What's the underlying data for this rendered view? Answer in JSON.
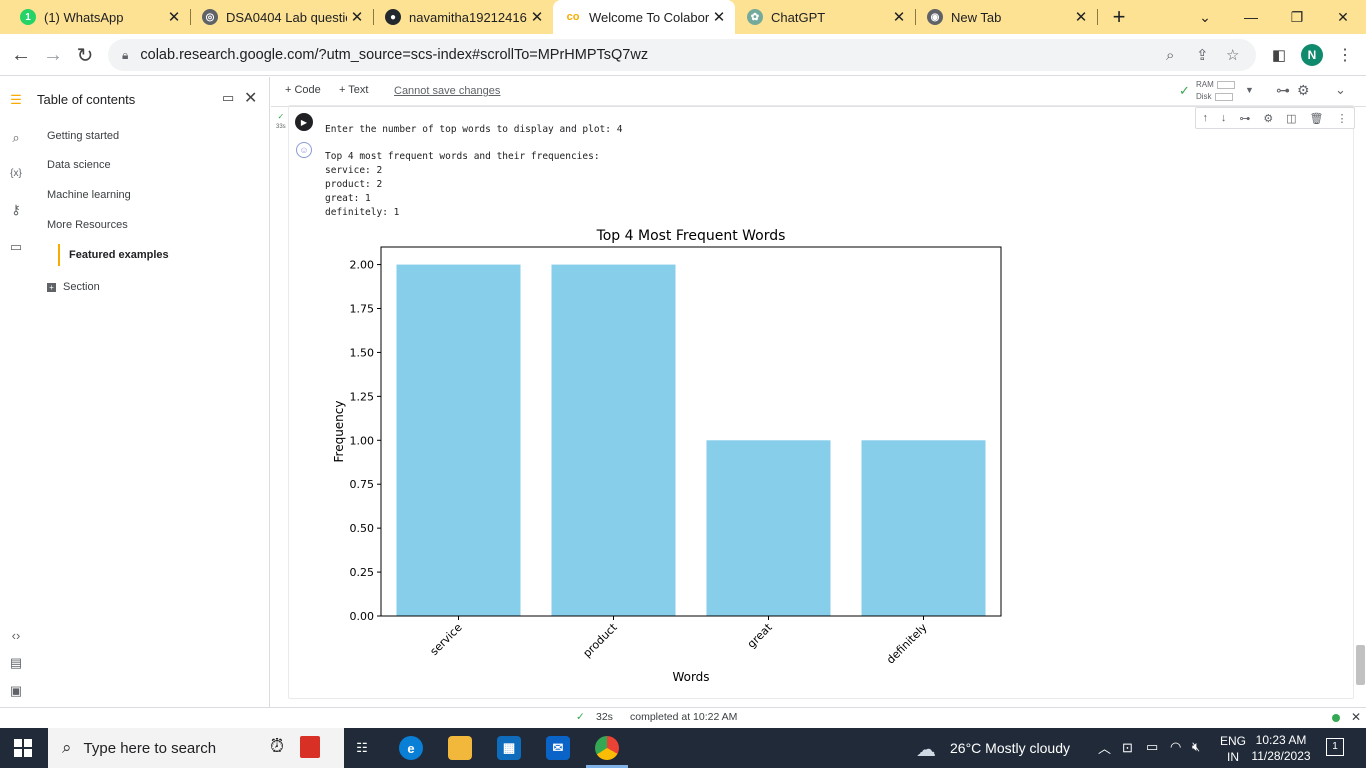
{
  "browser": {
    "tabs": [
      {
        "label": "(1) WhatsApp",
        "icon": "whatsapp-icon",
        "active": false
      },
      {
        "label": "DSA0404 Lab questio",
        "icon": "globe-icon",
        "active": false
      },
      {
        "label": "navamitha19212416:",
        "icon": "github-icon",
        "active": false
      },
      {
        "label": "Welcome To Colabor",
        "icon": "colab-icon",
        "active": true
      },
      {
        "label": "ChatGPT",
        "icon": "chatgpt-icon",
        "active": false
      },
      {
        "label": "New Tab",
        "icon": "chrome-icon",
        "active": false
      }
    ],
    "new_tab": "+",
    "url": "colab.research.google.com/?utm_source=scs-index#scrollTo=MPrHMPTsQ7wz",
    "profile_initial": "N"
  },
  "toc": {
    "title": "Table of contents",
    "items": [
      "Getting started",
      "Data science",
      "Machine learning",
      "More Resources"
    ],
    "selected": "Featured examples",
    "section": "Section"
  },
  "colab_toolbar": {
    "code": "+ Code",
    "text": "+ Text",
    "warning": "Cannot save changes",
    "ram": "RAM",
    "disk": "Disk"
  },
  "cell": {
    "exec_time": "33s",
    "output_lines": [
      "Enter the number of top words to display and plot: 4",
      "Top 4 most frequent words and their frequencies:",
      "service: 2",
      "product: 2",
      "great: 1",
      "definitely: 1"
    ]
  },
  "chart_data": {
    "type": "bar",
    "title": "Top 4 Most Frequent Words",
    "xlabel": "Words",
    "ylabel": "Frequency",
    "categories": [
      "service",
      "product",
      "great",
      "definitely"
    ],
    "values": [
      2,
      2,
      1,
      1
    ],
    "ylim": [
      0,
      2.1
    ],
    "yticks": [
      "0.00",
      "0.25",
      "0.50",
      "0.75",
      "1.00",
      "1.25",
      "1.50",
      "1.75",
      "2.00"
    ],
    "bar_color": "#87ceeb",
    "grid": false
  },
  "status": {
    "time": "32s",
    "message": "completed at 10:22 AM"
  },
  "taskbar": {
    "search_placeholder": "Type here to search",
    "weather": "26°C  Mostly cloudy",
    "lang_top": "ENG",
    "lang_bottom": "IN",
    "clock_time": "10:23 AM",
    "clock_date": "11/28/2023",
    "notifications": "1"
  }
}
